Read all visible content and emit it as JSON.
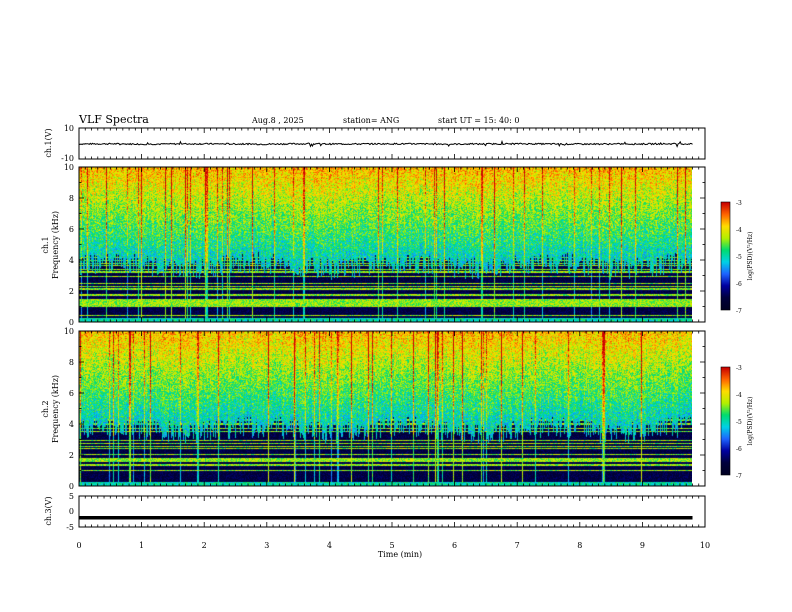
{
  "header": {
    "title": "VLF Spectra",
    "date": "Aug.8  , 2025",
    "station": "station= ANG",
    "start": "start  UT =   15: 40: 0"
  },
  "colors": {
    "spectrogram_ramp": [
      "#000022",
      "#00003c",
      "#0000a0",
      "#1e64ff",
      "#00d2e6",
      "#00dc6e",
      "#b4f000",
      "#ffdc00",
      "#ff6400",
      "#c80000"
    ]
  },
  "chart_data": [
    {
      "type": "line",
      "name": "ch1-waveform",
      "ylabel": "ch.1(V)",
      "ylim": [
        -10,
        10
      ],
      "yticks": [
        "10",
        "-10"
      ],
      "xlim": [
        0,
        10
      ],
      "x": [
        0,
        0.5,
        1,
        1.5,
        2,
        2.5,
        3,
        3.5,
        4,
        4.5,
        5,
        5.5,
        6,
        6.5,
        7,
        7.5,
        8,
        8.5,
        9,
        9.5,
        9.8
      ],
      "y": [
        -0.3,
        -0.2,
        -0.4,
        -0.3,
        -0.2,
        -0.3,
        -0.4,
        -0.2,
        -0.3,
        -0.3,
        -0.2,
        -0.3,
        -0.4,
        -0.3,
        -0.2,
        -0.3,
        -0.4,
        -0.3,
        -0.3,
        -0.2,
        -0.3
      ]
    },
    {
      "type": "heatmap",
      "name": "ch1-spectrogram",
      "ylabel_line1": "ch.1",
      "ylabel_line2": "Frequency (kHz)",
      "ylim": [
        0,
        10
      ],
      "yticks": [
        "0",
        "2",
        "4",
        "6",
        "8",
        "10"
      ],
      "xlim": [
        0,
        10
      ],
      "data_end_min": 9.8,
      "colorbar": {
        "label": "log(PSD)(V²/Hz)",
        "range": [
          -7,
          -3
        ],
        "ticks": [
          "-3",
          "-4",
          "-5",
          "-6",
          "-7"
        ]
      }
    },
    {
      "type": "heatmap",
      "name": "ch2-spectrogram",
      "ylabel_line1": "ch.2",
      "ylabel_line2": "Frequency (kHz)",
      "ylim": [
        0,
        10
      ],
      "yticks": [
        "0",
        "2",
        "4",
        "6",
        "8",
        "10"
      ],
      "xlim": [
        0,
        10
      ],
      "data_end_min": 9.8,
      "colorbar": {
        "label": "log(PSD)(V²/Hz)",
        "range": [
          -7,
          -3
        ],
        "ticks": [
          "-3",
          "-4",
          "-5",
          "-6",
          "-7"
        ]
      }
    },
    {
      "type": "line",
      "name": "ch3-waveform",
      "ylabel": "ch.3(V)",
      "ylim": [
        -5,
        5
      ],
      "yticks": [
        "5",
        "0",
        "-5"
      ],
      "xlim": [
        0,
        10
      ],
      "xlabel": "Time (min)",
      "xticks": [
        "0",
        "1",
        "2",
        "3",
        "4",
        "5",
        "6",
        "7",
        "8",
        "9",
        "10"
      ],
      "x": [
        0,
        9.8
      ],
      "y": [
        -2.0,
        -2.0
      ]
    }
  ]
}
